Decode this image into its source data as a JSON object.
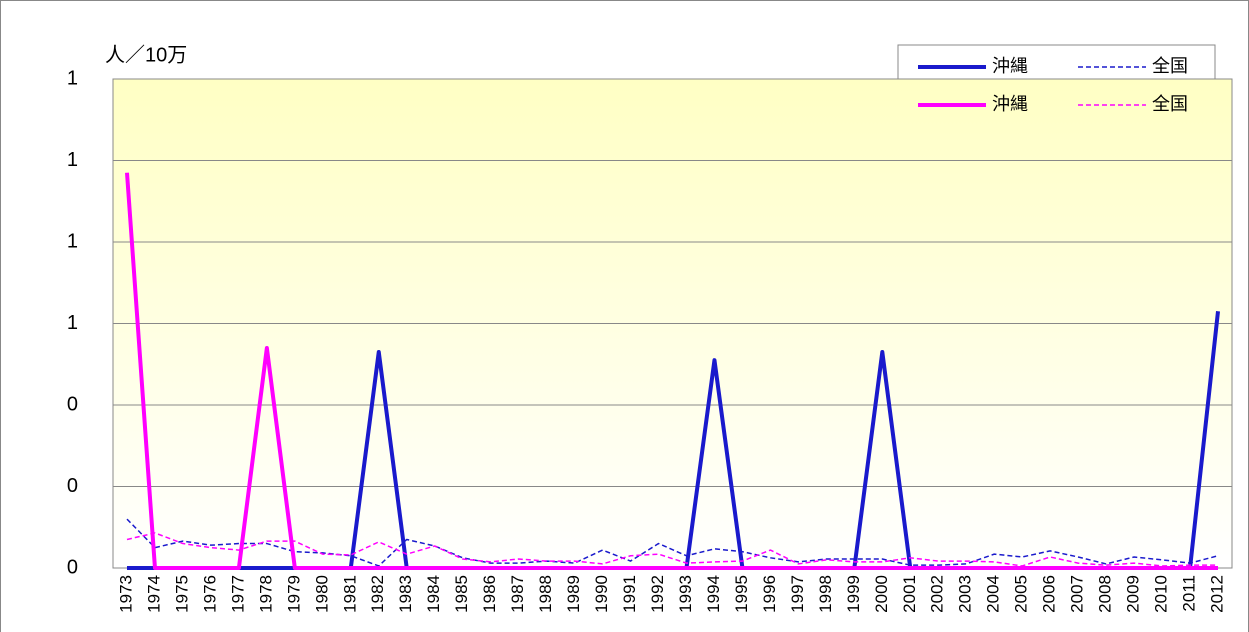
{
  "chart_data": {
    "type": "line",
    "y_label": "人／10万",
    "categories": [
      "1973",
      "1974",
      "1975",
      "1976",
      "1977",
      "1978",
      "1979",
      "1980",
      "1981",
      "1982",
      "1983",
      "1984",
      "1985",
      "1986",
      "1987",
      "1988",
      "1989",
      "1990",
      "1991",
      "1992",
      "1993",
      "1994",
      "1995",
      "1996",
      "1997",
      "1998",
      "1999",
      "2000",
      "2001",
      "2002",
      "2003",
      "2004",
      "2005",
      "2006",
      "2007",
      "2008",
      "2009",
      "2010",
      "2011",
      "2012"
    ],
    "series": [
      {
        "name": "沖縄",
        "color": "#1a1acc",
        "dashed": false,
        "values": [
          0,
          0,
          0,
          0,
          0,
          0,
          0,
          0,
          0,
          0.53,
          0,
          0,
          0,
          0,
          0,
          0,
          0,
          0,
          0,
          0,
          0,
          0.51,
          0,
          0,
          0,
          0,
          0,
          0.53,
          0,
          0,
          0,
          0,
          0,
          0,
          0,
          0,
          0,
          0,
          0,
          0.63
        ]
      },
      {
        "name": "全国",
        "color": "#1a1acc",
        "dashed": true,
        "values": [
          0.12,
          0.05,
          0.066,
          0.056,
          0.06,
          0.06,
          0.04,
          0.037,
          0.03,
          0.005,
          0.07,
          0.054,
          0.025,
          0.012,
          0.012,
          0.017,
          0.012,
          0.044,
          0.017,
          0.06,
          0.03,
          0.047,
          0.04,
          0.025,
          0.015,
          0.022,
          0.022,
          0.022,
          0.007,
          0.007,
          0.01,
          0.034,
          0.027,
          0.042,
          0.027,
          0.01,
          0.027,
          0.02,
          0.012,
          0.03
        ]
      },
      {
        "name": "沖縄",
        "color": "#ff00ff",
        "dashed": false,
        "values": [
          0.97,
          0,
          0,
          0,
          0,
          0.54,
          0,
          0,
          0,
          0,
          0,
          0,
          0,
          0,
          0,
          0,
          0,
          0,
          0,
          0,
          0,
          0,
          0,
          0,
          0,
          0,
          0,
          0,
          0,
          0,
          0,
          0,
          0,
          0,
          0,
          0,
          0,
          0,
          0,
          0
        ]
      },
      {
        "name": "全国",
        "color": "#ff00ff",
        "dashed": true,
        "values": [
          0.07,
          0.086,
          0.06,
          0.05,
          0.044,
          0.066,
          0.066,
          0.034,
          0.032,
          0.064,
          0.034,
          0.054,
          0.022,
          0.015,
          0.022,
          0.017,
          0.017,
          0.01,
          0.03,
          0.034,
          0.012,
          0.015,
          0.017,
          0.044,
          0.01,
          0.02,
          0.015,
          0.015,
          0.025,
          0.017,
          0.017,
          0.015,
          0.005,
          0.027,
          0.012,
          0.007,
          0.012,
          0.005,
          0.007,
          0.007
        ]
      }
    ],
    "ylim": [
      0,
      1.2
    ],
    "yticks": [
      0,
      {
        "value": 0.2,
        "label": "0"
      },
      {
        "value": 0.4,
        "label": "0"
      },
      {
        "value": 0.6,
        "label": "1"
      },
      {
        "value": 0.8,
        "label": "1"
      },
      1,
      {
        "value": 1.2,
        "label": "1"
      }
    ],
    "grid": true
  }
}
